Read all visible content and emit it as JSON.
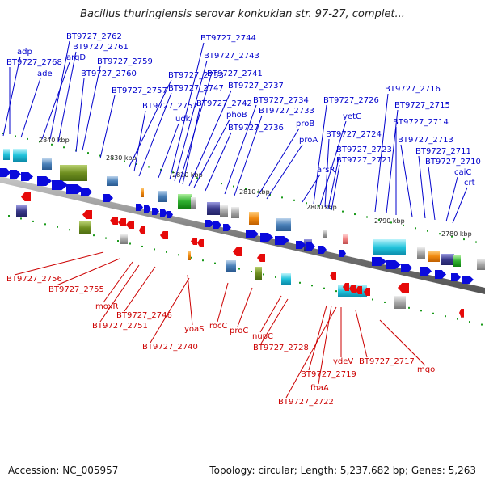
{
  "title": "Bacillus thuringiensis serovar konkukian str. 97-27, complet...",
  "footer": {
    "accession": "Accession: NC_005957",
    "topology": "Topology: circular; Length: 5,237,682 bp; Genes: 5,263"
  },
  "colors": {
    "forward_label": "#0000cc",
    "reverse_label": "#cc0000",
    "forward_arrow": "#0a0adc",
    "reverse_arrow": "#e60a0a",
    "backbone": "#888888",
    "tick": "#1a9a1a"
  },
  "kbp_labels": [
    "2840 kbp",
    "2830 kbp",
    "2820 kbp",
    "2810 kbp",
    "2800 kbp",
    "2790 kbp",
    "2780 kbp"
  ],
  "forward_genes": [
    "adp",
    "BT9727_2768",
    "ade",
    "argD",
    "BT9727_2762",
    "BT9727_2761",
    "BT9727_2759",
    "BT9727_2760",
    "BT9727_2757",
    "BT9727_2753",
    "BT9727_2752",
    "BT9727_2747",
    "udk",
    "BT9727_2744",
    "BT9727_2743",
    "BT9727_2741",
    "BT9727_2742",
    "BT9727_2737",
    "phoB",
    "BT9727_2736",
    "BT9727_2734",
    "BT9727_2733",
    "proB",
    "proA",
    "arsR",
    "BT9727_2726",
    "yetG",
    "BT9727_2724",
    "BT9727_2723",
    "BT9727_2721",
    "BT9727_2716",
    "BT9727_2715",
    "BT9727_2714",
    "BT9727_2713",
    "BT9727_2711",
    "BT9727_2710",
    "caiC",
    "crt"
  ],
  "reverse_genes": [
    "BT9727_2756",
    "BT9727_2755",
    "moxR",
    "BT9727_2751",
    "BT9727_2746",
    "yoaS",
    "BT9727_2740",
    "rocC",
    "proC",
    "nupC",
    "BT9727_2728",
    "BT9727_2719",
    "fbaA",
    "BT9727_2722",
    "ydeV",
    "BT9727_2717",
    "mqo"
  ]
}
